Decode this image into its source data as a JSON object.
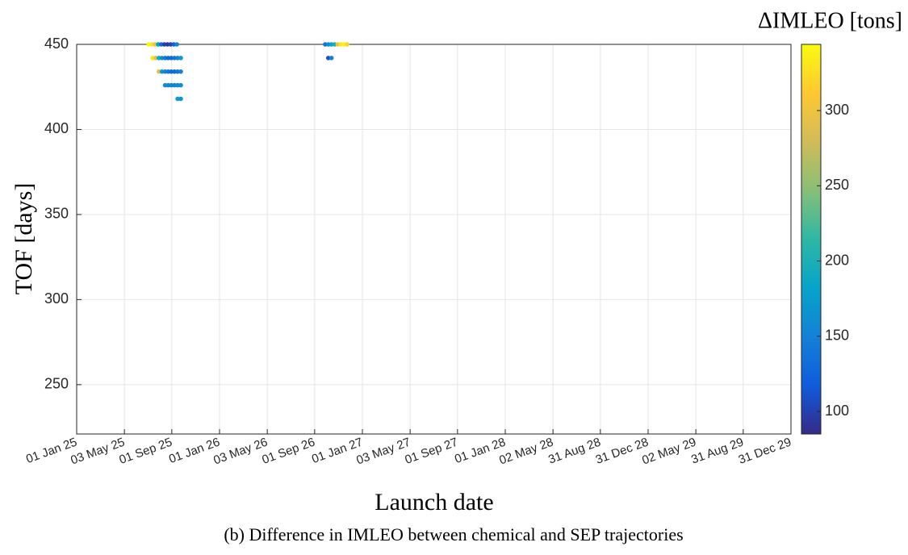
{
  "chart_data": {
    "type": "scatter",
    "caption": "(b) Difference in IMLEO between chemical and SEP trajectories",
    "xlabel": "Launch date",
    "ylabel": "TOF [days]",
    "colorbar_label": "ΔIMLEO [tons]",
    "xlim": [
      "2025-01-01",
      "2029-12-31"
    ],
    "xticks": [
      {
        "value": "2025-01-01",
        "label": "01 Jan 25"
      },
      {
        "value": "2025-05-03",
        "label": "03 May 25"
      },
      {
        "value": "2025-09-01",
        "label": "01 Sep 25"
      },
      {
        "value": "2026-01-01",
        "label": "01 Jan 26"
      },
      {
        "value": "2026-05-03",
        "label": "03 May 26"
      },
      {
        "value": "2026-09-01",
        "label": "01 Sep 26"
      },
      {
        "value": "2027-01-01",
        "label": "01 Jan 27"
      },
      {
        "value": "2027-05-03",
        "label": "03 May 27"
      },
      {
        "value": "2027-09-01",
        "label": "01 Sep 27"
      },
      {
        "value": "2028-01-01",
        "label": "01 Jan 28"
      },
      {
        "value": "2028-05-02",
        "label": "02 May 28"
      },
      {
        "value": "2028-08-31",
        "label": "31 Aug 28"
      },
      {
        "value": "2028-12-31",
        "label": "31 Dec 28"
      },
      {
        "value": "2029-05-02",
        "label": "02 May 29"
      },
      {
        "value": "2029-08-31",
        "label": "31 Aug 29"
      },
      {
        "value": "2029-12-31",
        "label": "31 Dec 29"
      }
    ],
    "ylim": [
      221,
      450
    ],
    "yticks": [
      250,
      300,
      350,
      400,
      450
    ],
    "clim": [
      85,
      344
    ],
    "cticks": [
      100,
      150,
      200,
      250,
      300
    ],
    "colormap": "parula",
    "grid": true,
    "x": [
      "2025-07-04",
      "2025-07-12",
      "2025-07-20",
      "2025-07-28",
      "2025-08-05",
      "2025-08-13",
      "2025-08-21",
      "2025-08-29",
      "2025-09-06",
      "2025-09-14",
      "2025-07-14",
      "2025-07-22",
      "2025-07-30",
      "2025-08-07",
      "2025-08-15",
      "2025-08-23",
      "2025-08-31",
      "2025-09-08",
      "2025-09-16",
      "2025-09-24",
      "2025-07-30",
      "2025-08-07",
      "2025-08-15",
      "2025-08-23",
      "2025-08-31",
      "2025-09-08",
      "2025-09-16",
      "2025-09-24",
      "2025-08-15",
      "2025-08-23",
      "2025-08-31",
      "2025-09-08",
      "2025-09-16",
      "2025-09-24",
      "2025-09-16",
      "2025-09-24",
      "2026-09-28",
      "2026-10-06",
      "2026-10-14",
      "2026-10-22",
      "2026-10-30",
      "2026-11-07",
      "2026-11-15",
      "2026-11-23",
      "2026-10-06",
      "2026-10-14"
    ],
    "values": [
      450,
      450,
      450,
      450,
      450,
      450,
      450,
      450,
      450,
      450,
      442,
      442,
      442,
      442,
      442,
      442,
      442,
      442,
      442,
      442,
      434,
      434,
      434,
      434,
      434,
      434,
      434,
      434,
      426,
      426,
      426,
      426,
      426,
      426,
      418,
      418,
      450,
      450,
      450,
      450,
      450,
      450,
      450,
      450,
      442,
      442
    ],
    "color_values": [
      340,
      330,
      300,
      180,
      130,
      100,
      95,
      100,
      120,
      150,
      330,
      290,
      190,
      160,
      140,
      130,
      130,
      140,
      150,
      170,
      290,
      170,
      150,
      140,
      130,
      130,
      140,
      150,
      160,
      155,
      150,
      150,
      155,
      160,
      175,
      170,
      140,
      160,
      180,
      200,
      300,
      330,
      340,
      320,
      110,
      150
    ]
  }
}
